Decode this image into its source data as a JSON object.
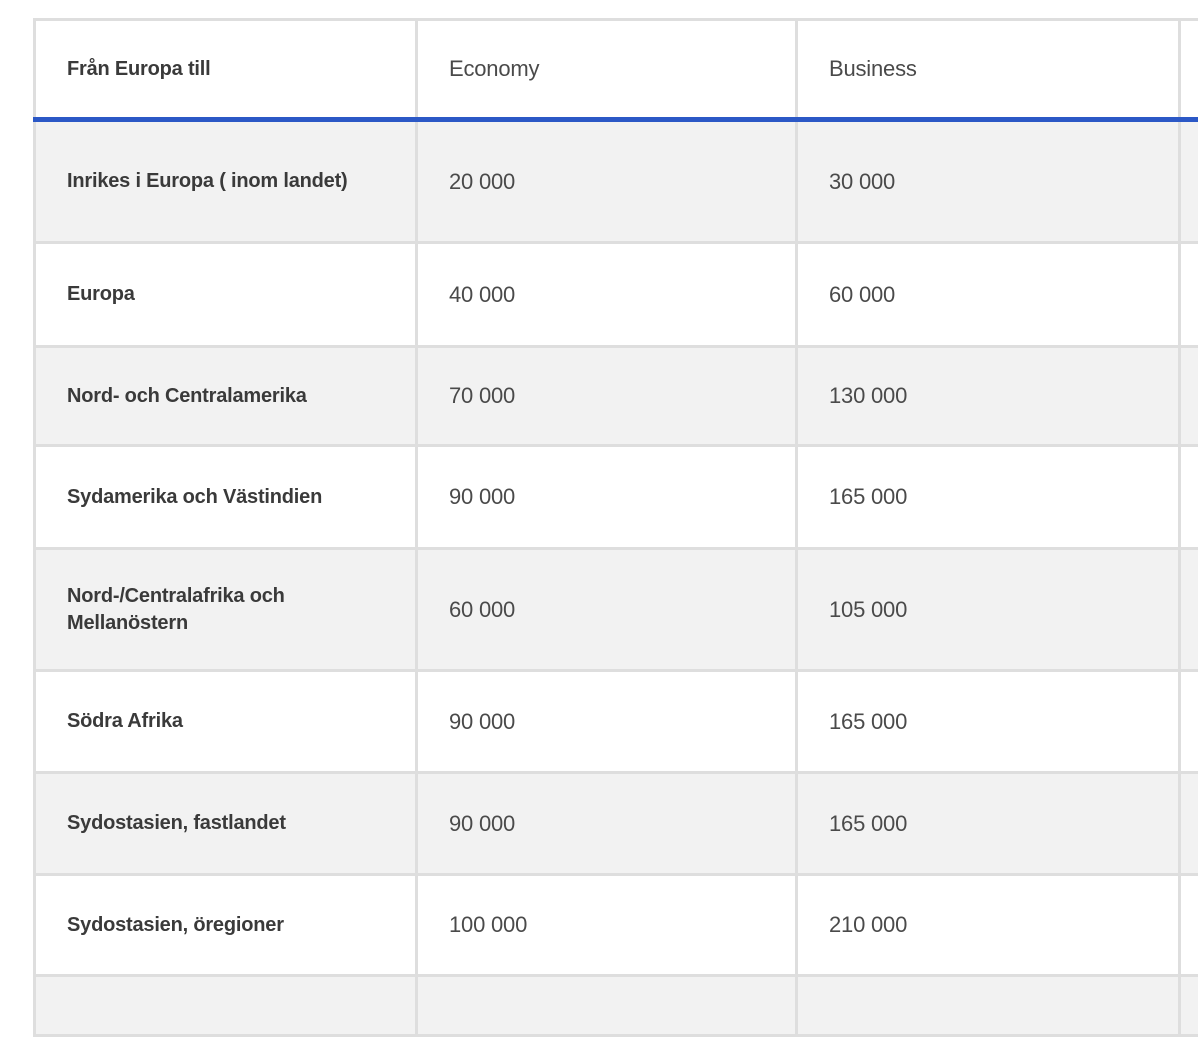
{
  "table": {
    "headers": [
      "Från Europa till",
      "Economy",
      "Business"
    ],
    "rows": [
      {
        "label": "Inrikes i Europa ( inom landet)",
        "economy": "20 000",
        "business": "30 000"
      },
      {
        "label": "Europa",
        "economy": "40 000",
        "business": "60 000"
      },
      {
        "label": "Nord- och Centralamerika",
        "economy": "70 000",
        "business": "130 000"
      },
      {
        "label": "Sydamerika och Västindien",
        "economy": "90 000",
        "business": "165 000"
      },
      {
        "label": "Nord-/Centralafrika och Mellanöstern",
        "economy": "60 000",
        "business": "105 000"
      },
      {
        "label": "Södra Afrika",
        "economy": "90 000",
        "business": "165 000"
      },
      {
        "label": "Sydostasien, fastlandet",
        "economy": "90 000",
        "business": "165 000"
      },
      {
        "label": "Sydostasien, öregioner",
        "economy": "100 000",
        "business": "210 000"
      }
    ]
  },
  "colors": {
    "accent_blue": "#2b58c6",
    "row_alt_bg": "#f2f2f2",
    "border": "#dedede"
  }
}
